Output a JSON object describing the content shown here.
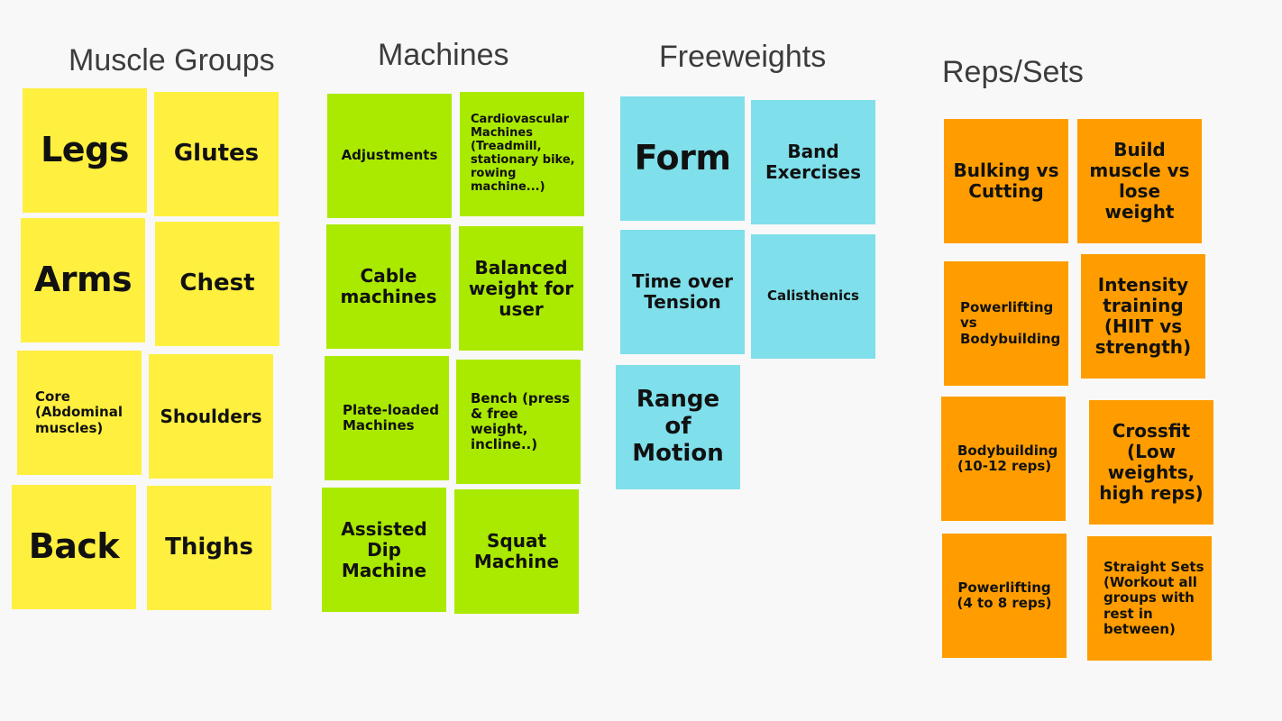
{
  "colors": {
    "background": "#f8f8f8",
    "heading": "#3c3c3c",
    "muscle_groups": "#ffef3f",
    "machines": "#aaea00",
    "freeweights": "#7fdfea",
    "reps_sets": "#ff9d00"
  },
  "columns": {
    "muscle_groups": {
      "title": "Muscle Groups",
      "notes": [
        "Legs",
        "Glutes",
        "Arms",
        "Chest",
        "Core (Abdominal muscles)",
        "Shoulders",
        "Back",
        "Thighs"
      ]
    },
    "machines": {
      "title": "Machines",
      "notes": [
        "Adjustments",
        "Cardiovascular Machines (Treadmill, stationary bike, rowing machine...)",
        "Cable machines",
        "Balanced weight for user",
        "Plate-loaded Machines",
        "Bench (press & free weight, incline..)",
        "Assisted Dip Machine",
        "Squat Machine"
      ]
    },
    "freeweights": {
      "title": "Freeweights",
      "notes": [
        "Form",
        "Band Exercises",
        "Time over Tension",
        "Calisthenics",
        "Range of Motion"
      ]
    },
    "reps_sets": {
      "title": "Reps/Sets",
      "notes": [
        "Bulking vs Cutting",
        "Build muscle vs lose weight",
        "Powerlifting vs Bodybuilding",
        "Intensity training (HIIT vs strength)",
        "Bodybuilding (10-12 reps)",
        "Crossfit (Low weights, high reps)",
        "Powerlifting (4 to 8 reps)",
        "Straight Sets (Workout all groups with rest in between)"
      ]
    }
  }
}
